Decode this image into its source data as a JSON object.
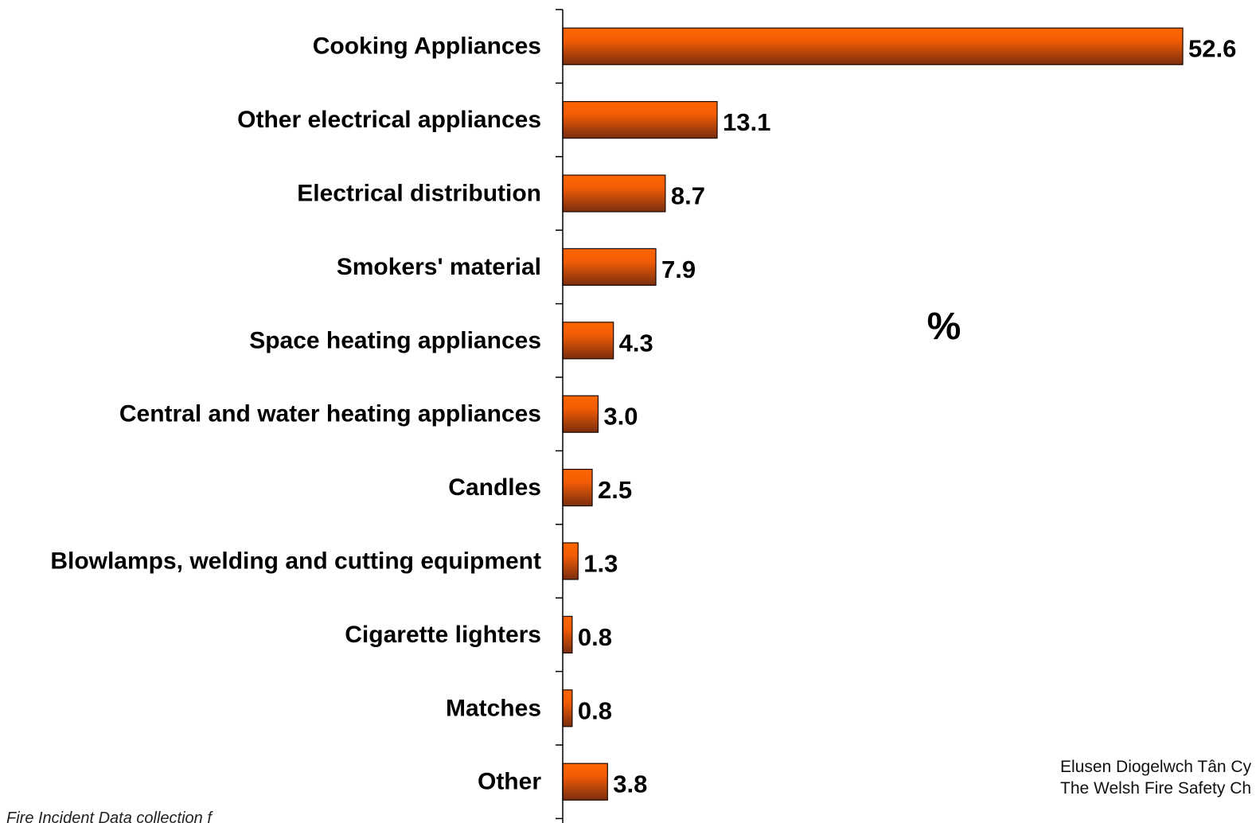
{
  "chart_data": {
    "type": "bar",
    "orientation": "horizontal",
    "categories": [
      "Cooking Appliances",
      "Other electrical appliances",
      "Electrical distribution",
      "Smokers' material",
      "Space heating appliances",
      "Central and water heating appliances",
      "Candles",
      "Blowlamps, welding and cutting equipment",
      "Cigarette lighters",
      "Matches",
      "Other"
    ],
    "values": [
      52.6,
      13.1,
      8.7,
      7.9,
      4.3,
      3.0,
      2.5,
      1.3,
      0.8,
      0.8,
      3.8
    ],
    "value_labels": [
      "52.6",
      "13.1",
      "8.7",
      "7.9",
      "4.3",
      "3.0",
      "2.5",
      "1.3",
      "0.8",
      "0.8",
      "3.8"
    ],
    "unit_label": "%",
    "xlim": [
      0,
      55
    ],
    "grid": false,
    "bar_color_top": "#ff6600",
    "bar_color_bottom": "#7a2e0e"
  },
  "footer": {
    "line1": "Elusen Diogelwch Tân Cy",
    "line2": "The Welsh Fire Safety Ch"
  },
  "source_note": "Fire Incident Data collection f"
}
